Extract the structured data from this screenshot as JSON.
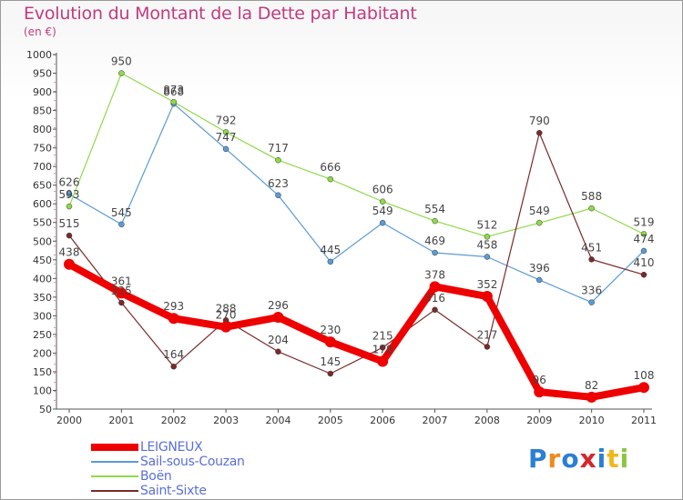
{
  "title": "Evolution du Montant de la Dette par Habitant",
  "subtitle": "(en €)",
  "logo": {
    "text": "Proxiti",
    "colors": [
      "#2a7fd4",
      "#f08a1c",
      "#2a7fd4",
      "#d6252a",
      "#2a7fd4",
      "#f0b81c",
      "#8cc63f"
    ]
  },
  "chart_data": {
    "type": "line",
    "title": "Evolution du Montant de la Dette par Habitant",
    "subtitle": "(en €)",
    "x": [
      "2000",
      "2001",
      "2002",
      "2003",
      "2004",
      "2005",
      "2006",
      "2007",
      "2008",
      "2009",
      "2010",
      "2011"
    ],
    "ylim": [
      50,
      1000
    ],
    "yticks": [
      50,
      100,
      150,
      200,
      250,
      300,
      350,
      400,
      450,
      500,
      550,
      600,
      650,
      700,
      750,
      800,
      850,
      900,
      950,
      1000
    ],
    "grid": false,
    "legend": "bottom-left",
    "series": [
      {
        "name": "LEIGNEUX",
        "color": "#ee0000",
        "width": 8,
        "values": [
          438,
          361,
          293,
          270,
          296,
          230,
          178,
          378,
          352,
          96,
          82,
          108
        ],
        "labels": [
          "438",
          "361",
          "293",
          "270",
          "296",
          "230",
          "178",
          "378",
          "352",
          "96",
          "82",
          "108"
        ]
      },
      {
        "name": "Sail-sous-Couzan",
        "color": "#5b9bd5",
        "width": 1.2,
        "values": [
          626,
          545,
          868,
          747,
          623,
          445,
          549,
          469,
          458,
          396,
          336,
          474
        ],
        "labels": [
          "626",
          "545",
          "868",
          "747",
          "623",
          "445",
          "549",
          "469",
          "458",
          "396",
          "336",
          "474"
        ]
      },
      {
        "name": "Boën",
        "color": "#8fd94a",
        "width": 1.2,
        "values": [
          593,
          950,
          873,
          792,
          717,
          666,
          606,
          554,
          512,
          549,
          588,
          519
        ],
        "labels": [
          "593",
          "950",
          "873",
          "792",
          "717",
          "666",
          "606",
          "554",
          "512",
          "549",
          "588",
          "519"
        ]
      },
      {
        "name": "Saint-Sixte",
        "color": "#7a2a2a",
        "width": 1.2,
        "values": [
          515,
          335,
          164,
          288,
          204,
          145,
          215,
          316,
          217,
          790,
          451,
          410
        ],
        "labels": [
          "515",
          "335",
          "164",
          "288",
          "204",
          "145",
          "215",
          "316",
          "217",
          "790",
          "451",
          "410"
        ]
      }
    ]
  }
}
